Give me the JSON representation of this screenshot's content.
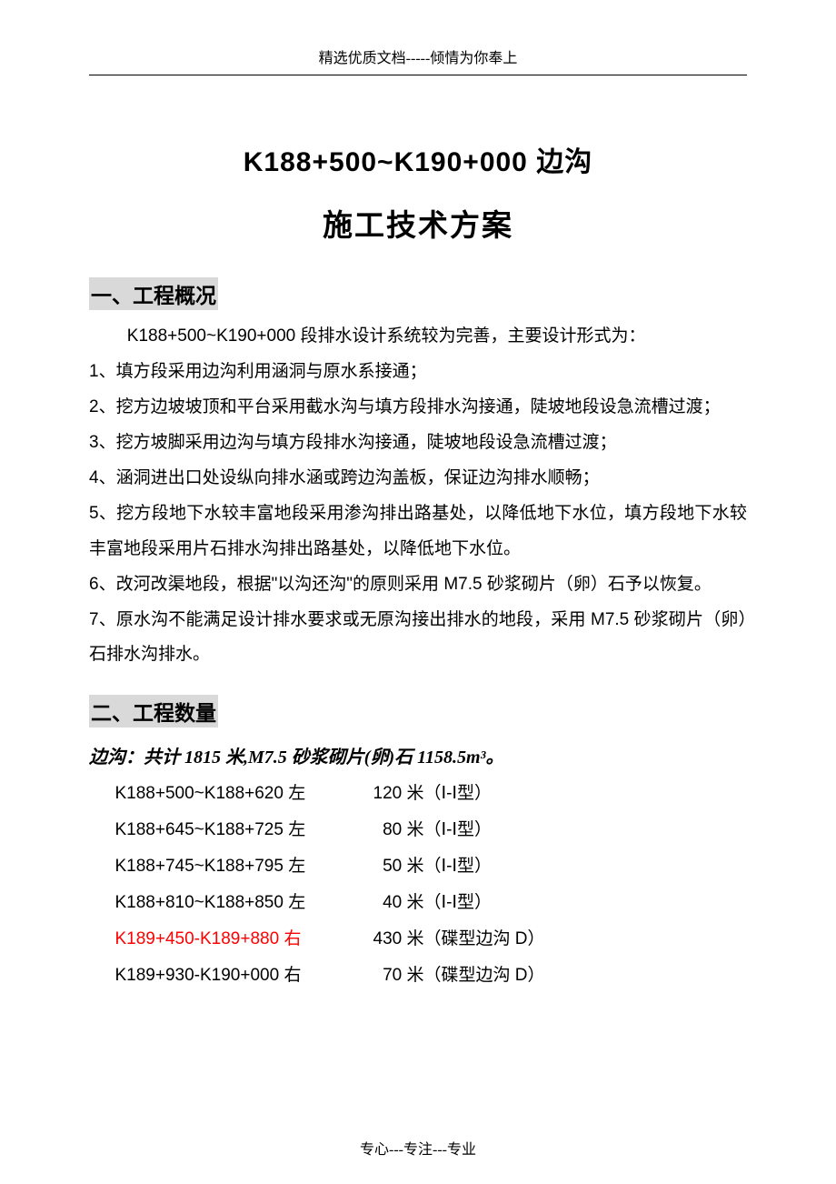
{
  "header": "精选优质文档-----倾情为你奉上",
  "title_line_1": "K188+500~K190+000 边沟",
  "title_line_2": "施工技术方案",
  "section1": {
    "heading": "一、工程概况",
    "intro": "K188+500~K190+000 段排水设计系统较为完善，主要设计形式为：",
    "items": [
      "1、填方段采用边沟利用涵洞与原水系接通；",
      "2、挖方边坡坡顶和平台采用截水沟与填方段排水沟接通，陡坡地段设急流槽过渡；",
      "3、挖方坡脚采用边沟与填方段排水沟接通，陡坡地段设急流槽过渡；",
      "4、涵洞进出口处设纵向排水涵或跨边沟盖板，保证边沟排水顺畅；",
      "5、挖方段地下水较丰富地段采用渗沟排出路基处，以降低地下水位，填方段地下水较丰富地段采用片石排水沟排出路基处，以降低地下水位。",
      "6、改河改渠地段，根据\"以沟还沟\"的原则采用 M7.5 砂浆砌片（卵）石予以恢复。",
      "7、原水沟不能满足设计排水要求或无原沟接出排水的地段，采用 M7.5 砂浆砌片（卵）石排水沟排水。"
    ]
  },
  "section2": {
    "heading": "二、工程数量",
    "subheading": "边沟：共计 1815 米,M7.5 砂浆砌片(卵)石 1158.5m³。",
    "rows": [
      {
        "range": "K188+500~K188+620 左",
        "length": "120 米",
        "type": "（Ⅰ-Ⅰ型）",
        "highlight": false
      },
      {
        "range": "K188+645~K188+725 左",
        "length": "80 米",
        "type": "（Ⅰ-Ⅰ型）",
        "highlight": false
      },
      {
        "range": "K188+745~K188+795 左",
        "length": "50 米",
        "type": "（Ⅰ-Ⅰ型）",
        "highlight": false
      },
      {
        "range": "K188+810~K188+850 左",
        "length": "40 米",
        "type": "（Ⅰ-Ⅰ型）",
        "highlight": false
      },
      {
        "range": "K189+450-K189+880 右",
        "length": "430 米",
        "type": "（碟型边沟 D）",
        "highlight": true
      },
      {
        "range": "K189+930-K190+000 右",
        "length": "70 米",
        "type": "（碟型边沟 D）",
        "highlight": false
      }
    ]
  },
  "footer": "专心---专注---专业"
}
